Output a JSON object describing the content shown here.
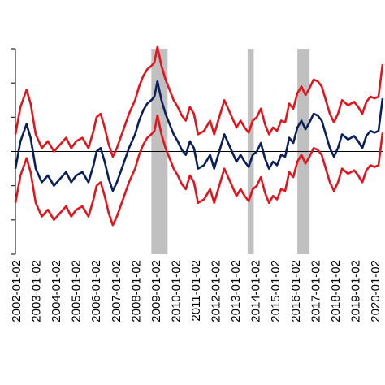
{
  "chart_data": {
    "type": "line",
    "title": "",
    "xlabel": "",
    "ylabel": "",
    "x_tick_labels": [
      "2002-01-02",
      "2003-01-02",
      "2004-01-02",
      "2005-01-02",
      "2006-01-02",
      "2007-01-02",
      "2008-01-02",
      "2009-01-02",
      "2010-01-02",
      "2011-01-02",
      "2012-01-02",
      "2013-01-02",
      "2014-01-02",
      "2015-01-02",
      "2016-01-02",
      "2017-01-02",
      "2018-01-02",
      "2019-01-02",
      "2020-01-02"
    ],
    "xlim": [
      2002.0,
      2020.1
    ],
    "ylim": [
      -3,
      3
    ],
    "reference_line": 0,
    "grid": false,
    "shaded_periods": [
      [
        2008.7,
        2009.5
      ],
      [
        2013.45,
        2013.75
      ],
      [
        2015.9,
        2016.5
      ]
    ],
    "x": [
      2002.0,
      2002.25,
      2002.55,
      2002.75,
      2003.0,
      2003.3,
      2003.6,
      2003.9,
      2004.2,
      2004.5,
      2004.75,
      2005.0,
      2005.3,
      2005.6,
      2005.85,
      2006.0,
      2006.2,
      2006.4,
      2006.6,
      2006.8,
      2007.0,
      2007.3,
      2007.6,
      2007.9,
      2008.1,
      2008.3,
      2008.5,
      2008.7,
      2008.85,
      2009.0,
      2009.2,
      2009.4,
      2009.6,
      2009.8,
      2010.0,
      2010.2,
      2010.4,
      2010.6,
      2010.8,
      2011.0,
      2011.3,
      2011.6,
      2011.8,
      2012.0,
      2012.3,
      2012.6,
      2012.9,
      2013.1,
      2013.3,
      2013.5,
      2013.7,
      2013.9,
      2014.1,
      2014.3,
      2014.5,
      2014.7,
      2014.9,
      2015.1,
      2015.3,
      2015.5,
      2015.7,
      2015.9,
      2016.1,
      2016.3,
      2016.5,
      2016.7,
      2016.9,
      2017.1,
      2017.3,
      2017.5,
      2017.7,
      2017.9,
      2018.1,
      2018.4,
      2018.7,
      2018.9,
      2019.1,
      2019.3,
      2019.5,
      2019.7,
      2019.9,
      2020.1
    ],
    "series": [
      {
        "color": "#0a1f5c",
        "values": [
          -0.5,
          0.3,
          0.8,
          0.4,
          -0.5,
          -0.9,
          -0.7,
          -1.0,
          -0.8,
          -0.6,
          -0.9,
          -0.7,
          -0.6,
          -0.9,
          -0.4,
          0.0,
          0.1,
          -0.3,
          -0.8,
          -1.15,
          -0.9,
          -0.4,
          0.1,
          0.5,
          0.9,
          1.2,
          1.4,
          1.5,
          1.6,
          2.05,
          1.5,
          1.1,
          0.8,
          0.5,
          0.3,
          0.05,
          -0.1,
          0.3,
          0.1,
          -0.5,
          -0.4,
          -0.1,
          -0.5,
          -0.1,
          0.5,
          0.1,
          -0.3,
          -0.1,
          -0.3,
          -0.45,
          -0.1,
          0.0,
          0.25,
          -0.2,
          -0.5,
          -0.3,
          -0.4,
          -0.1,
          -0.15,
          0.4,
          0.25,
          0.7,
          0.9,
          0.65,
          0.85,
          1.1,
          1.05,
          0.9,
          0.5,
          0.1,
          -0.15,
          0.1,
          0.5,
          0.35,
          0.45,
          0.3,
          0.1,
          0.45,
          0.6,
          0.55,
          0.6,
          1.55
        ]
      },
      {
        "color": "#e3141b",
        "values": [
          0.5,
          1.3,
          1.8,
          1.4,
          0.5,
          0.1,
          0.3,
          0.0,
          0.2,
          0.4,
          0.1,
          0.3,
          0.4,
          0.1,
          0.6,
          1.0,
          1.1,
          0.7,
          0.2,
          -0.15,
          0.1,
          0.6,
          1.1,
          1.5,
          1.9,
          2.2,
          2.4,
          2.5,
          2.6,
          3.05,
          2.5,
          2.1,
          1.8,
          1.5,
          1.3,
          1.05,
          0.9,
          1.3,
          1.1,
          0.5,
          0.6,
          0.9,
          0.5,
          0.9,
          1.5,
          1.1,
          0.7,
          0.9,
          0.7,
          0.55,
          0.9,
          1.0,
          1.25,
          0.8,
          0.5,
          0.7,
          0.6,
          0.9,
          0.85,
          1.4,
          1.25,
          1.7,
          1.9,
          1.65,
          1.85,
          2.1,
          2.05,
          1.9,
          1.5,
          1.1,
          0.85,
          1.1,
          1.5,
          1.35,
          1.45,
          1.3,
          1.1,
          1.45,
          1.6,
          1.55,
          1.6,
          2.55
        ]
      },
      {
        "color": "#e3141b",
        "values": [
          -1.5,
          -0.7,
          -0.2,
          -0.6,
          -1.5,
          -1.9,
          -1.7,
          -2.0,
          -1.8,
          -1.6,
          -1.9,
          -1.7,
          -1.6,
          -1.9,
          -1.4,
          -1.0,
          -0.9,
          -1.3,
          -1.8,
          -2.15,
          -1.9,
          -1.4,
          -0.9,
          -0.5,
          -0.1,
          0.2,
          0.4,
          0.5,
          0.6,
          1.05,
          0.5,
          0.1,
          -0.2,
          -0.5,
          -0.7,
          -0.95,
          -1.1,
          -0.7,
          -0.9,
          -1.5,
          -1.4,
          -1.1,
          -1.5,
          -1.1,
          -0.5,
          -0.9,
          -1.3,
          -1.1,
          -1.3,
          -1.45,
          -1.1,
          -1.0,
          -0.75,
          -1.2,
          -1.5,
          -1.3,
          -1.4,
          -1.1,
          -1.15,
          -0.6,
          -0.75,
          -0.3,
          -0.1,
          -0.35,
          -0.15,
          0.1,
          0.05,
          -0.1,
          -0.5,
          -0.9,
          -1.15,
          -0.9,
          -0.5,
          -0.65,
          -0.55,
          -0.7,
          -0.9,
          -0.55,
          -0.4,
          -0.45,
          -0.4,
          0.55
        ]
      }
    ]
  }
}
